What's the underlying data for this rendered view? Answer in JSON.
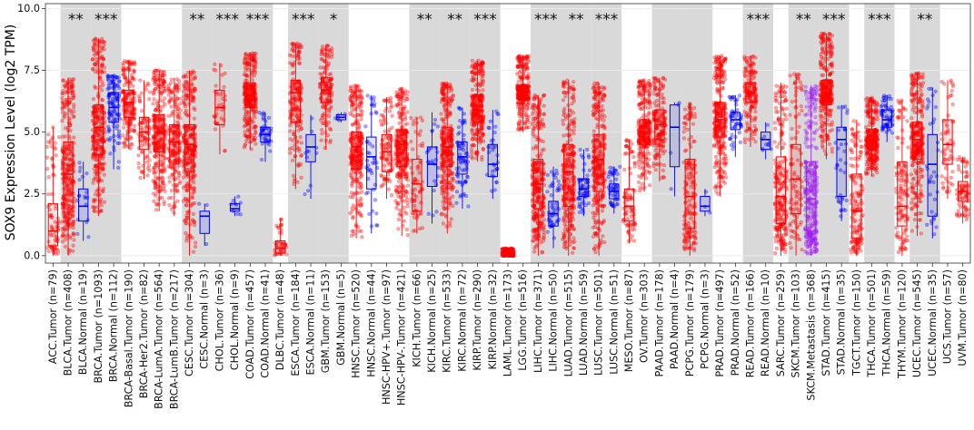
{
  "chart_data": {
    "type": "box",
    "title": "",
    "xlabel": "",
    "ylabel": "SOX9 Expression Level (log2 TPM)",
    "ylim": [
      -0.3,
      10.2
    ],
    "yticks": [
      0.0,
      2.5,
      5.0,
      7.5,
      10.0
    ],
    "ytick_labels": [
      "0.0",
      "2.5",
      "5.0",
      "7.5",
      "10.0"
    ],
    "legend": "none",
    "colors": {
      "tumor": "#ff0000",
      "normal": "#0000ff",
      "metastasis": "#a020f0",
      "shade": "#d9d9d9"
    },
    "shaded_groups": [
      "BLCA",
      "BRCA",
      "CESC",
      "CHOL",
      "COAD",
      "ESCA",
      "GBM",
      "KICH",
      "KIRC",
      "KIRP",
      "LIHC",
      "LUAD",
      "LUSC",
      "PAAD",
      "PCPG",
      "READ",
      "SKCM",
      "STAD",
      "THCA",
      "UCEC"
    ],
    "groups": [
      {
        "name": "ACC",
        "sig": "",
        "boxes": [
          {
            "label": "ACC.Tumor (n=79)",
            "kind": "tumor",
            "n": 79,
            "stats": [
              0.0,
              0.4,
              1.0,
              2.1,
              5.2
            ]
          }
        ]
      },
      {
        "name": "BLCA",
        "sig": "**",
        "boxes": [
          {
            "label": "BLCA.Tumor (n=408)",
            "kind": "tumor",
            "n": 408,
            "stats": [
              0.0,
              1.9,
              3.3,
              4.6,
              7.2
            ]
          },
          {
            "label": "BLCA.Normal (n=19)",
            "kind": "normal",
            "n": 19,
            "stats": [
              0.6,
              1.4,
              2.0,
              2.7,
              3.8
            ]
          }
        ]
      },
      {
        "name": "BRCA",
        "sig": "***",
        "boxes": [
          {
            "label": "BRCA.Tumor (n=1093)",
            "kind": "tumor",
            "n": 1093,
            "stats": [
              1.6,
              4.1,
              5.2,
              6.1,
              8.8
            ]
          },
          {
            "label": "BRCA.Normal (n=112)",
            "kind": "normal",
            "n": 112,
            "stats": [
              3.5,
              5.4,
              6.0,
              6.6,
              7.3
            ]
          }
        ]
      },
      {
        "name": "BRCA-Basal",
        "sig": "",
        "boxes": [
          {
            "label": "BRCA-Basal.Tumor (n=190)",
            "kind": "tumor",
            "n": 190,
            "stats": [
              4.3,
              5.6,
              6.2,
              6.7,
              7.9
            ]
          }
        ]
      },
      {
        "name": "BRCA-Her2",
        "sig": "",
        "boxes": [
          {
            "label": "BRCA-Her2.Tumor (n=82)",
            "kind": "tumor",
            "n": 82,
            "stats": [
              3.1,
              4.3,
              5.0,
              5.6,
              7.1
            ]
          }
        ]
      },
      {
        "name": "BRCA-LumA",
        "sig": "",
        "boxes": [
          {
            "label": "BRCA-LumA.Tumor (n=564)",
            "kind": "tumor",
            "n": 564,
            "stats": [
              1.8,
              4.2,
              5.0,
              5.7,
              7.5
            ]
          }
        ]
      },
      {
        "name": "BRCA-LumB",
        "sig": "",
        "boxes": [
          {
            "label": "BRCA-LumB.Tumor (n=217)",
            "kind": "tumor",
            "n": 217,
            "stats": [
              1.6,
              3.7,
              4.6,
              5.3,
              7.2
            ]
          }
        ]
      },
      {
        "name": "CESC",
        "sig": "**",
        "boxes": [
          {
            "label": "CESC.Tumor (n=304)",
            "kind": "tumor",
            "n": 304,
            "stats": [
              0.0,
              3.4,
              4.5,
              5.3,
              7.5
            ]
          },
          {
            "label": "CESC.Normal (n=3)",
            "kind": "normal",
            "n": 3,
            "stats": [
              0.4,
              0.9,
              1.6,
              1.8,
              2.1
            ]
          }
        ]
      },
      {
        "name": "CHOL",
        "sig": "***",
        "boxes": [
          {
            "label": "CHOL.Tumor (n=36)",
            "kind": "tumor",
            "n": 36,
            "stats": [
              4.1,
              5.3,
              6.0,
              6.7,
              7.8
            ]
          },
          {
            "label": "CHOL.Normal (n=9)",
            "kind": "normal",
            "n": 9,
            "stats": [
              1.6,
              1.8,
              1.9,
              2.1,
              2.4
            ]
          }
        ]
      },
      {
        "name": "COAD",
        "sig": "***",
        "boxes": [
          {
            "label": "COAD.Tumor (n=457)",
            "kind": "tumor",
            "n": 457,
            "stats": [
              4.3,
              6.0,
              6.5,
              7.0,
              8.2
            ]
          },
          {
            "label": "COAD.Normal (n=41)",
            "kind": "normal",
            "n": 41,
            "stats": [
              3.8,
              4.6,
              4.9,
              5.2,
              5.8
            ]
          }
        ]
      },
      {
        "name": "DLBC",
        "sig": "",
        "boxes": [
          {
            "label": "DLBC.Tumor (n=48)",
            "kind": "tumor",
            "n": 48,
            "stats": [
              0.0,
              0.1,
              0.3,
              0.6,
              1.5
            ]
          }
        ]
      },
      {
        "name": "ESCA",
        "sig": "***",
        "boxes": [
          {
            "label": "ESCA.Tumor (n=184)",
            "kind": "tumor",
            "n": 184,
            "stats": [
              2.7,
              5.4,
              6.6,
              7.1,
              8.6
            ]
          },
          {
            "label": "ESCA.Normal (n=11)",
            "kind": "normal",
            "n": 11,
            "stats": [
              2.3,
              3.8,
              4.4,
              4.9,
              5.7
            ]
          }
        ]
      },
      {
        "name": "GBM",
        "sig": "*",
        "boxes": [
          {
            "label": "GBM.Tumor (n=153)",
            "kind": "tumor",
            "n": 153,
            "stats": [
              4.3,
              6.2,
              6.7,
              7.2,
              8.5
            ]
          },
          {
            "label": "GBM.Normal (n=5)",
            "kind": "normal",
            "n": 5,
            "stats": [
              5.4,
              5.5,
              5.6,
              5.7,
              5.8
            ]
          }
        ]
      },
      {
        "name": "HNSC",
        "sig": "",
        "boxes": [
          {
            "label": "HNSC.Tumor (n=520)",
            "kind": "tumor",
            "n": 520,
            "stats": [
              0.7,
              3.5,
              4.4,
              5.0,
              6.9
            ]
          },
          {
            "label": "HNSC.Normal (n=44)",
            "kind": "normal",
            "n": 44,
            "stats": [
              0.9,
              2.7,
              4.0,
              4.8,
              6.5
            ]
          },
          {
            "label": "HNSC-HPV+.Tumor (n=97)",
            "kind": "tumor",
            "n": 97,
            "stats": [
              2.3,
              3.4,
              4.2,
              4.9,
              6.4
            ]
          },
          {
            "label": "HNSC-HPV-.Tumor (n=421)",
            "kind": "tumor",
            "n": 421,
            "stats": [
              0.8,
              3.6,
              4.5,
              5.1,
              6.8
            ]
          }
        ]
      },
      {
        "name": "KICH",
        "sig": "**",
        "boxes": [
          {
            "label": "KICH.Tumor (n=66)",
            "kind": "tumor",
            "n": 66,
            "stats": [
              0.9,
              1.8,
              2.9,
              3.9,
              5.6
            ]
          },
          {
            "label": "KICH.Normal (n=25)",
            "kind": "normal",
            "n": 25,
            "stats": [
              1.3,
              2.8,
              3.7,
              4.4,
              5.8
            ]
          }
        ]
      },
      {
        "name": "KIRC",
        "sig": "**",
        "boxes": [
          {
            "label": "KIRC.Tumor (n=533)",
            "kind": "tumor",
            "n": 533,
            "stats": [
              0.9,
              3.6,
              4.4,
              5.2,
              7.0
            ]
          },
          {
            "label": "KIRC.Normal (n=72)",
            "kind": "normal",
            "n": 72,
            "stats": [
              1.9,
              3.3,
              4.0,
              4.6,
              6.0
            ]
          }
        ]
      },
      {
        "name": "KIRP",
        "sig": "***",
        "boxes": [
          {
            "label": "KIRP.Tumor (n=290)",
            "kind": "tumor",
            "n": 290,
            "stats": [
              3.8,
              5.4,
              5.9,
              6.5,
              7.9
            ]
          },
          {
            "label": "KIRP.Normal (n=32)",
            "kind": "normal",
            "n": 32,
            "stats": [
              2.3,
              3.2,
              3.7,
              4.5,
              5.9
            ]
          }
        ]
      },
      {
        "name": "LAML",
        "sig": "",
        "boxes": [
          {
            "label": "LAML.Tumor (n=173)",
            "kind": "tumor",
            "n": 173,
            "stats": [
              0.0,
              0.0,
              0.05,
              0.15,
              0.3
            ]
          }
        ]
      },
      {
        "name": "LGG",
        "sig": "",
        "boxes": [
          {
            "label": "LGG.Tumor (n=516)",
            "kind": "tumor",
            "n": 516,
            "stats": [
              5.0,
              6.3,
              6.6,
              6.9,
              8.1
            ]
          }
        ]
      },
      {
        "name": "LIHC",
        "sig": "***",
        "boxes": [
          {
            "label": "LIHC.Tumor (n=371)",
            "kind": "tumor",
            "n": 371,
            "stats": [
              0.0,
              1.9,
              2.9,
              3.9,
              6.5
            ]
          },
          {
            "label": "LIHC.Normal (n=50)",
            "kind": "normal",
            "n": 50,
            "stats": [
              0.3,
              1.2,
              1.7,
              2.2,
              3.6
            ]
          }
        ]
      },
      {
        "name": "LUAD",
        "sig": "**",
        "boxes": [
          {
            "label": "LUAD.Tumor (n=515)",
            "kind": "tumor",
            "n": 515,
            "stats": [
              0.0,
              2.0,
              3.4,
              4.5,
              7.1
            ]
          },
          {
            "label": "LUAD.Normal (n=59)",
            "kind": "normal",
            "n": 59,
            "stats": [
              1.6,
              2.4,
              2.7,
              3.1,
              4.3
            ]
          }
        ]
      },
      {
        "name": "LUSC",
        "sig": "***",
        "boxes": [
          {
            "label": "LUSC.Tumor (n=501)",
            "kind": "tumor",
            "n": 501,
            "stats": [
              0.0,
              2.6,
              3.9,
              4.9,
              7.0
            ]
          },
          {
            "label": "LUSC.Normal (n=51)",
            "kind": "normal",
            "n": 51,
            "stats": [
              1.7,
              2.3,
              2.6,
              2.9,
              3.6
            ]
          }
        ]
      },
      {
        "name": "MESO",
        "sig": "",
        "boxes": [
          {
            "label": "MESO.Tumor (n=87)",
            "kind": "tumor",
            "n": 87,
            "stats": [
              0.5,
              1.4,
              2.0,
              2.7,
              4.7
            ]
          }
        ]
      },
      {
        "name": "OV",
        "sig": "",
        "boxes": [
          {
            "label": "OV.Tumor (n=303)",
            "kind": "tumor",
            "n": 303,
            "stats": [
              2.6,
              4.5,
              5.0,
              5.5,
              7.1
            ]
          }
        ]
      },
      {
        "name": "PAAD",
        "sig": "",
        "boxes": [
          {
            "label": "PAAD.Tumor (n=178)",
            "kind": "tumor",
            "n": 178,
            "stats": [
              3.0,
              4.7,
              5.3,
              5.9,
              7.2
            ]
          },
          {
            "label": "PAAD.Normal (n=4)",
            "kind": "normal",
            "n": 4,
            "stats": [
              2.4,
              3.6,
              5.2,
              6.1,
              6.2
            ]
          }
        ]
      },
      {
        "name": "PCPG",
        "sig": "",
        "boxes": [
          {
            "label": "PCPG.Tumor (n=179)",
            "kind": "tumor",
            "n": 179,
            "stats": [
              0.0,
              1.1,
              2.4,
              3.9,
              6.2
            ]
          },
          {
            "label": "PCPG.Normal (n=3)",
            "kind": "normal",
            "n": 3,
            "stats": [
              1.6,
              1.8,
              2.0,
              2.4,
              2.7
            ]
          }
        ]
      },
      {
        "name": "PRAD",
        "sig": "",
        "boxes": [
          {
            "label": "PRAD.Tumor (n=497)",
            "kind": "tumor",
            "n": 497,
            "stats": [
              2.4,
              4.8,
              5.5,
              6.2,
              8.1
            ]
          },
          {
            "label": "PRAD.Normal (n=52)",
            "kind": "normal",
            "n": 52,
            "stats": [
              4.0,
              5.1,
              5.5,
              5.8,
              6.5
            ]
          }
        ]
      },
      {
        "name": "READ",
        "sig": "***",
        "boxes": [
          {
            "label": "READ.Tumor (n=166)",
            "kind": "tumor",
            "n": 166,
            "stats": [
              4.4,
              6.2,
              6.6,
              7.0,
              8.1
            ]
          },
          {
            "label": "READ.Normal (n=10)",
            "kind": "normal",
            "n": 10,
            "stats": [
              3.9,
              4.3,
              4.7,
              5.0,
              5.4
            ]
          }
        ]
      },
      {
        "name": "SARC",
        "sig": "",
        "boxes": [
          {
            "label": "SARC.Tumor (n=259)",
            "kind": "tumor",
            "n": 259,
            "stats": [
              0.0,
              1.3,
              2.4,
              4.0,
              7.0
            ]
          }
        ]
      },
      {
        "name": "SKCM",
        "sig": "**",
        "boxes": [
          {
            "label": "SKCM.Tumor (n=103)",
            "kind": "tumor",
            "n": 103,
            "stats": [
              0.0,
              1.7,
              3.1,
              4.5,
              7.4
            ]
          },
          {
            "label": "SKCM.Metastasis (n=368)",
            "kind": "metastasis",
            "n": 368,
            "stats": [
              0.0,
              1.0,
              2.3,
              3.8,
              6.9
            ]
          }
        ]
      },
      {
        "name": "STAD",
        "sig": "***",
        "boxes": [
          {
            "label": "STAD.Tumor (n=415)",
            "kind": "tumor",
            "n": 415,
            "stats": [
              3.9,
              6.1,
              6.6,
              7.1,
              9.0
            ]
          },
          {
            "label": "STAD.Normal (n=35)",
            "kind": "normal",
            "n": 35,
            "stats": [
              1.4,
              2.4,
              4.7,
              5.2,
              6.1
            ]
          }
        ]
      },
      {
        "name": "TGCT",
        "sig": "",
        "boxes": [
          {
            "label": "TGCT.Tumor (n=150)",
            "kind": "tumor",
            "n": 150,
            "stats": [
              0.0,
              0.7,
              1.8,
              3.3,
              5.5
            ]
          }
        ]
      },
      {
        "name": "THCA",
        "sig": "***",
        "boxes": [
          {
            "label": "THCA.Tumor (n=501)",
            "kind": "tumor",
            "n": 501,
            "stats": [
              3.2,
              4.3,
              4.7,
              5.1,
              6.4
            ]
          },
          {
            "label": "THCA.Normal (n=59)",
            "kind": "normal",
            "n": 59,
            "stats": [
              4.6,
              5.2,
              5.5,
              5.9,
              6.5
            ]
          }
        ]
      },
      {
        "name": "THYM",
        "sig": "",
        "boxes": [
          {
            "label": "THYM.Tumor (n=120)",
            "kind": "tumor",
            "n": 120,
            "stats": [
              0.0,
              1.2,
              2.0,
              3.8,
              6.3
            ]
          }
        ]
      },
      {
        "name": "UCEC",
        "sig": "**",
        "boxes": [
          {
            "label": "UCEC.Tumor (n=545)",
            "kind": "tumor",
            "n": 545,
            "stats": [
              0.8,
              3.9,
              4.7,
              5.4,
              7.4
            ]
          },
          {
            "label": "UCEC.Normal (n=35)",
            "kind": "normal",
            "n": 35,
            "stats": [
              0.7,
              1.6,
              3.7,
              4.9,
              6.8
            ]
          }
        ]
      },
      {
        "name": "UCS",
        "sig": "",
        "boxes": [
          {
            "label": "UCS.Tumor (n=57)",
            "kind": "tumor",
            "n": 57,
            "stats": [
              2.3,
              3.7,
              4.5,
              5.5,
              7.1
            ]
          }
        ]
      },
      {
        "name": "UVM",
        "sig": "",
        "boxes": [
          {
            "label": "UVM.Tumor (n=80)",
            "kind": "tumor",
            "n": 80,
            "stats": [
              1.3,
              2.2,
              2.6,
              3.0,
              4.0
            ]
          }
        ]
      }
    ]
  }
}
